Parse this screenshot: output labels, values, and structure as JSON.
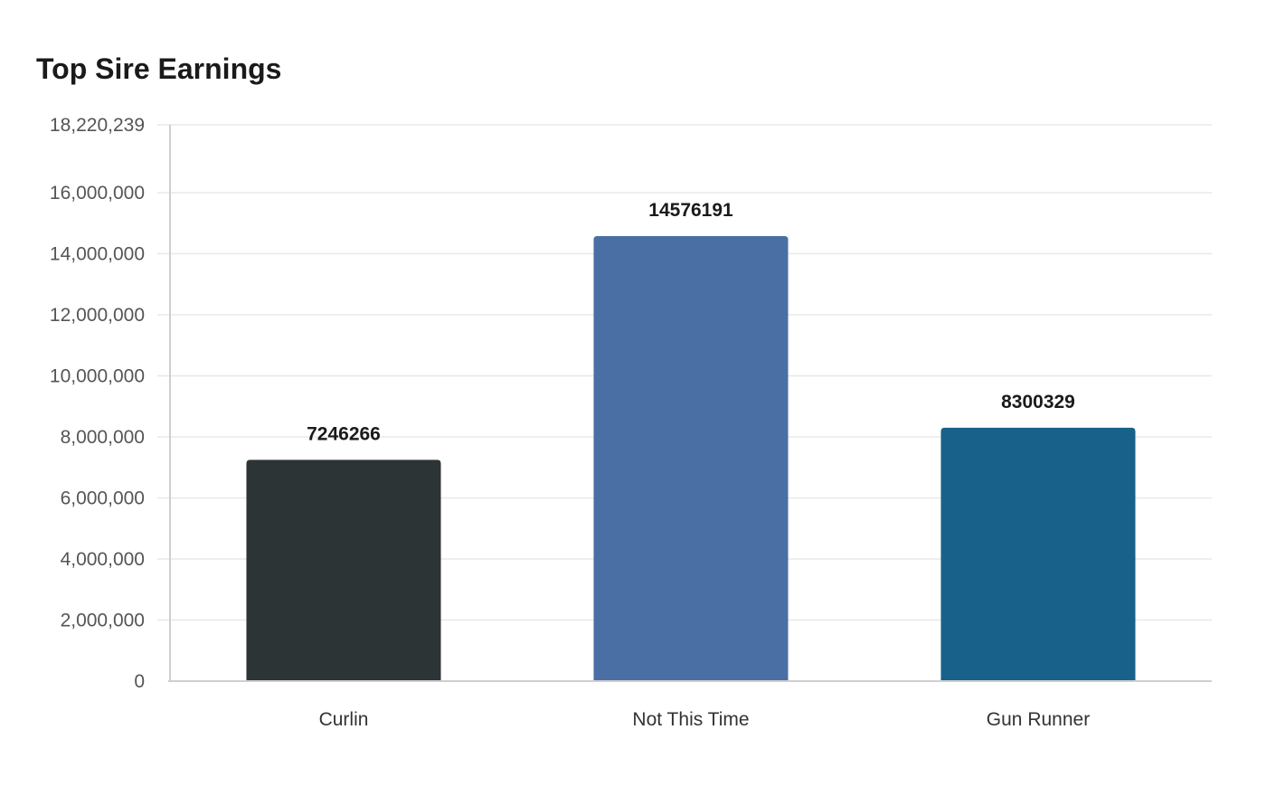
{
  "chart_data": {
    "type": "bar",
    "title": "Top Sire Earnings",
    "xlabel": "",
    "ylabel": "",
    "categories": [
      "Curlin",
      "Not This Time",
      "Gun Runner"
    ],
    "values": [
      7246266,
      14576191,
      8300329
    ],
    "data_labels": [
      "7246266",
      "14576191",
      "8300329"
    ],
    "colors": [
      "#2d3436",
      "#4a6fa5",
      "#17618a"
    ],
    "ylim": [
      0,
      18220239
    ],
    "yticks": [
      0,
      2000000,
      4000000,
      6000000,
      8000000,
      10000000,
      12000000,
      14000000,
      16000000,
      18220239
    ],
    "ytick_labels": [
      "0",
      "2,000,000",
      "4,000,000",
      "6,000,000",
      "8,000,000",
      "10,000,000",
      "12,000,000",
      "14,000,000",
      "16,000,000",
      "18,220,239"
    ],
    "grid": true,
    "legend": "none"
  }
}
